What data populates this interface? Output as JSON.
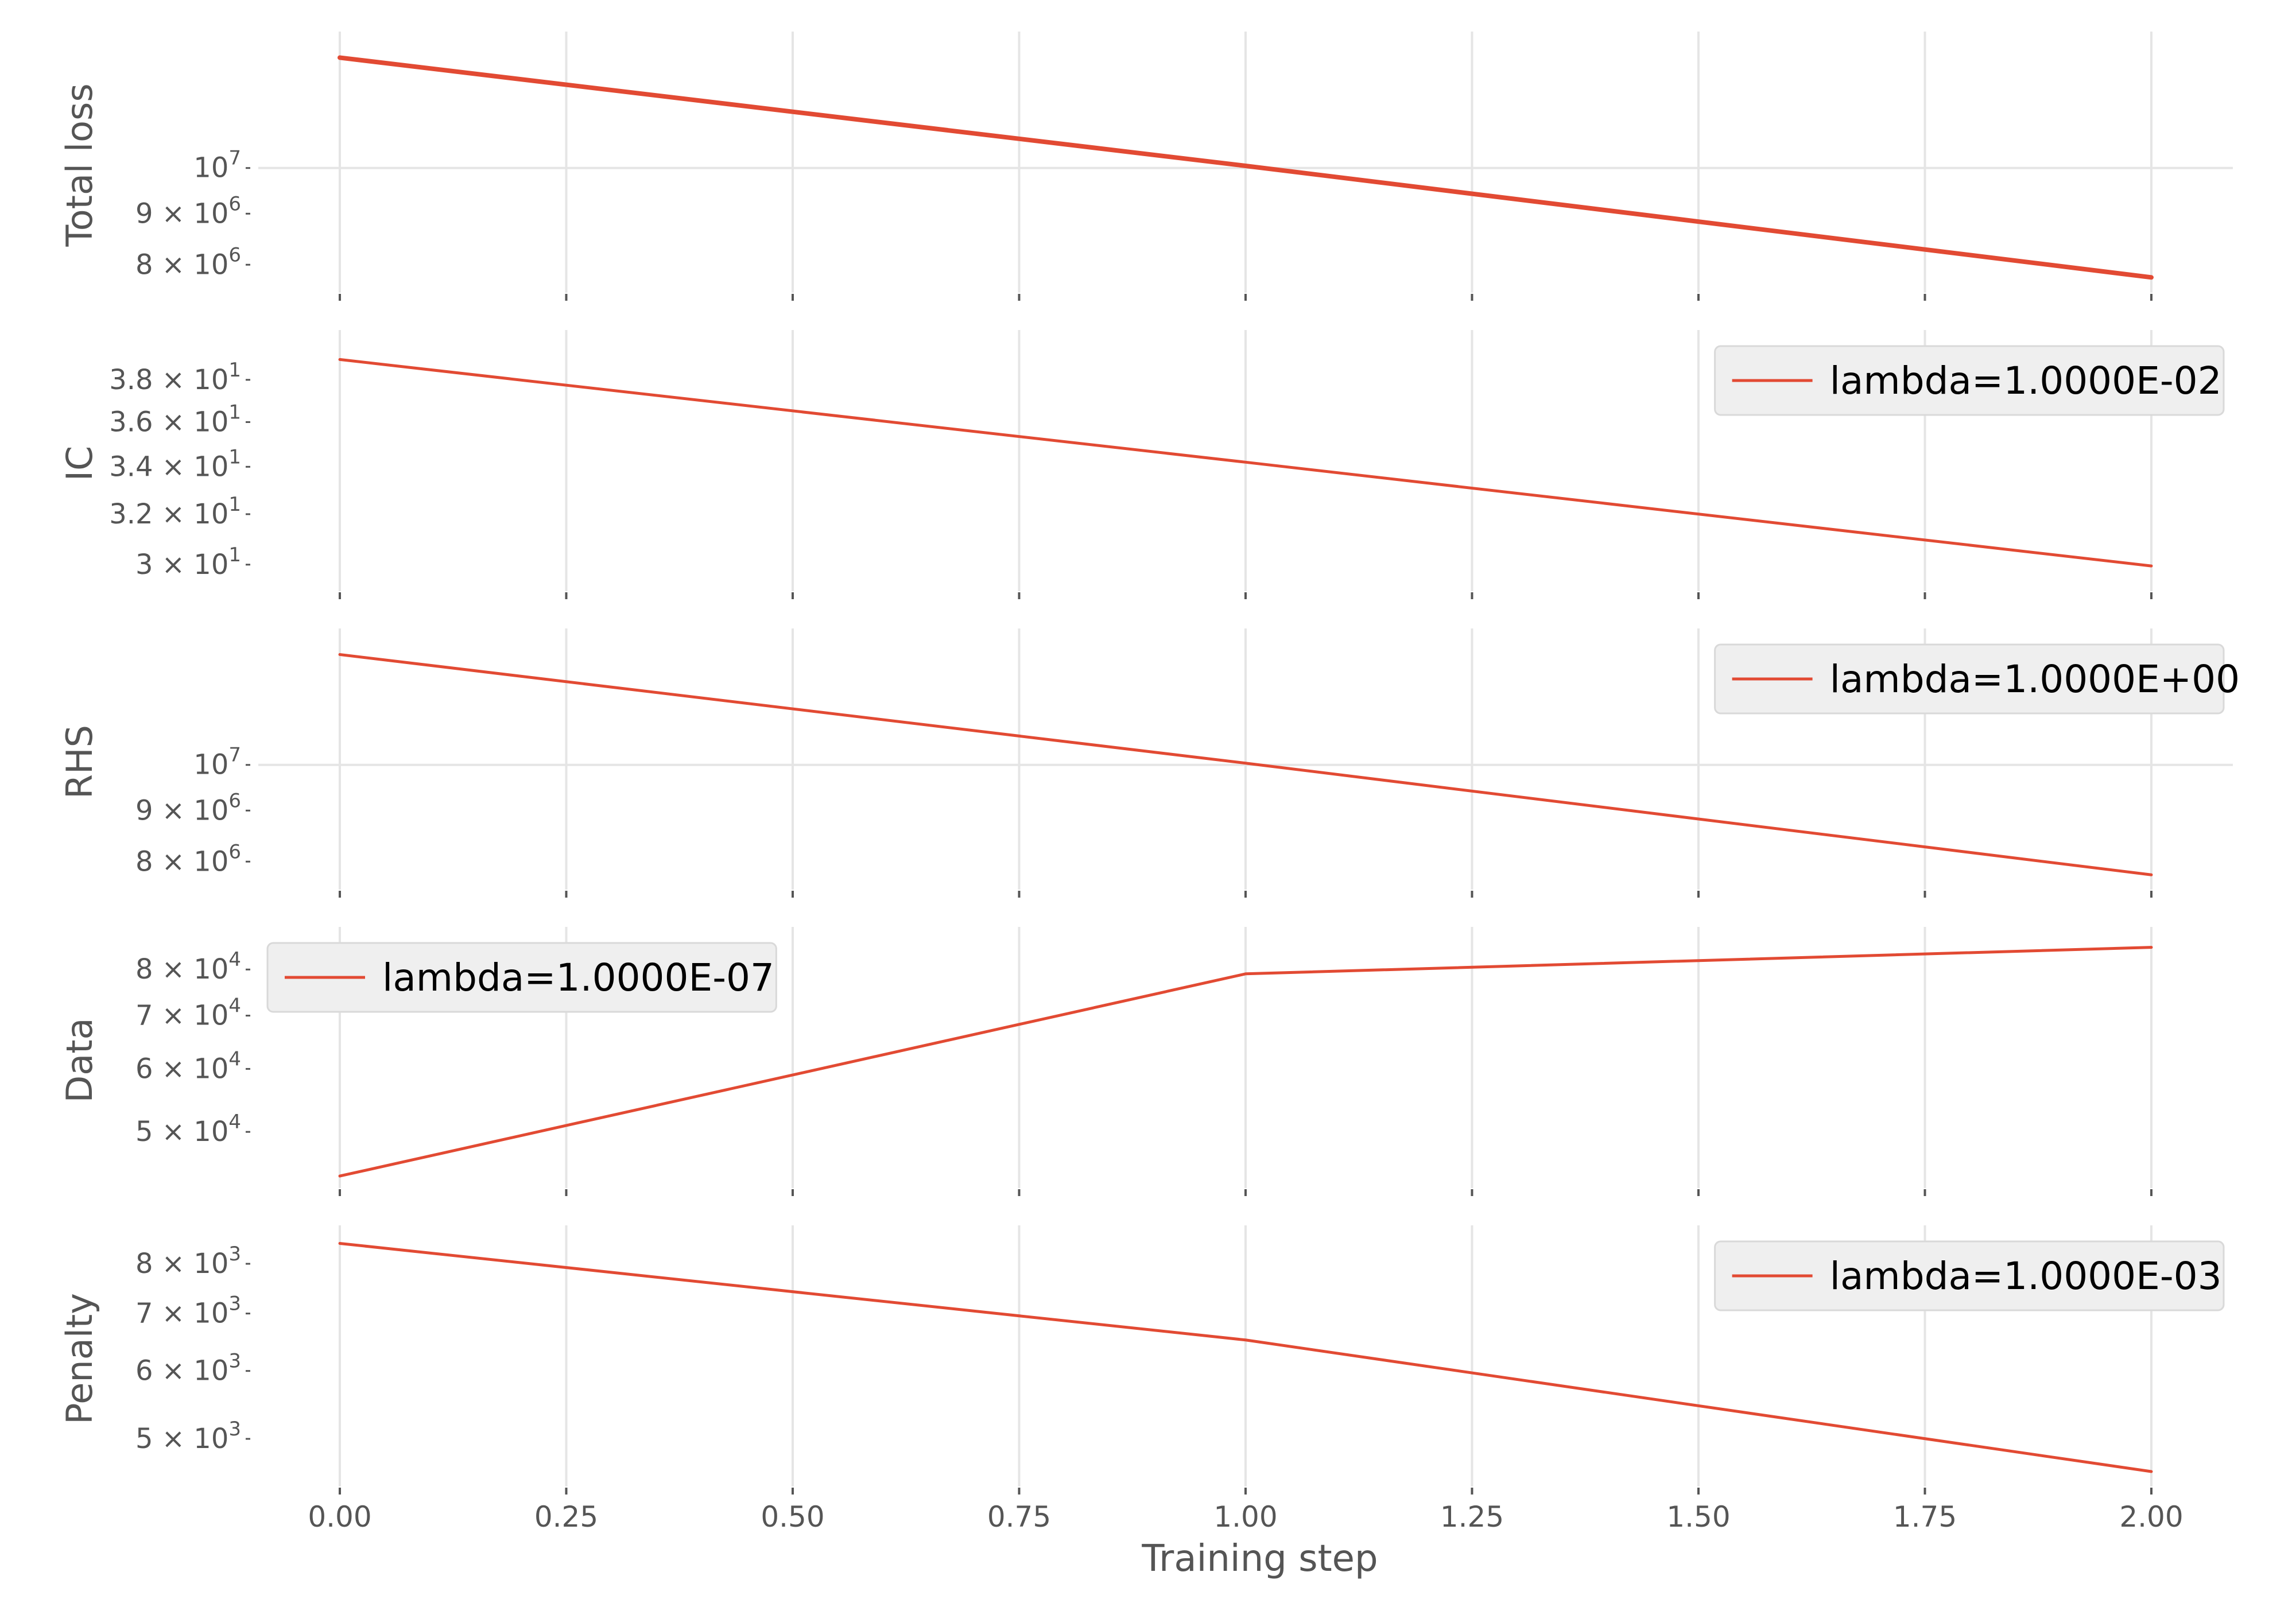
{
  "colors": {
    "line": "#E24A33",
    "grid": "#E5E5E5",
    "tick": "#555555",
    "label": "#555555",
    "legend_bg": "#EFEFEF",
    "legend_border": "#D9D9D9"
  },
  "x_tick_labels": [
    "0.00",
    "0.25",
    "0.50",
    "0.75",
    "1.00",
    "1.25",
    "1.50",
    "1.75",
    "2.00"
  ],
  "chart_data": {
    "type": "line",
    "xlabel": "Training step",
    "shared_x": true,
    "xlim": [
      -0.09,
      2.09
    ],
    "grid": true,
    "subplots": [
      {
        "ylabel": "Total loss",
        "yscale": "log",
        "ylim": [
          7500000.0,
          13700000.0
        ],
        "yticks": [
          {
            "value": 8000000,
            "base": "8 × 10",
            "exp": "6"
          },
          {
            "value": 9000000,
            "base": "9 × 10",
            "exp": "6"
          },
          {
            "value": 10000000,
            "base": "10",
            "exp": "7"
          }
        ],
        "legend": null,
        "series": [
          {
            "x": [
              0,
              1,
              2
            ],
            "y": [
              12900000,
              10050000,
              7770000
            ]
          }
        ]
      },
      {
        "ylabel": "IC",
        "yscale": "log",
        "ylim": [
          29.0,
          40.5
        ],
        "yticks": [
          {
            "value": 30,
            "base": "3 × 10",
            "exp": "1"
          },
          {
            "value": 32,
            "base": "3.2 × 10",
            "exp": "1"
          },
          {
            "value": 34,
            "base": "3.4 × 10",
            "exp": "1"
          },
          {
            "value": 36,
            "base": "3.6 × 10",
            "exp": "1"
          },
          {
            "value": 38,
            "base": "3.8 × 10",
            "exp": "1"
          }
        ],
        "legend": {
          "label": "lambda=1.0000E-02",
          "loc": "upper right"
        },
        "series": [
          {
            "x": [
              0,
              1,
              2
            ],
            "y": [
              39.0,
              34.2,
              29.95
            ]
          }
        ]
      },
      {
        "ylabel": "RHS",
        "yscale": "log",
        "ylim": [
          7500000.0,
          13700000.0
        ],
        "yticks": [
          {
            "value": 8000000,
            "base": "8 × 10",
            "exp": "6"
          },
          {
            "value": 9000000,
            "base": "9 × 10",
            "exp": "6"
          },
          {
            "value": 10000000,
            "base": "10",
            "exp": "7"
          }
        ],
        "legend": {
          "label": "lambda=1.0000E+00",
          "loc": "upper right"
        },
        "series": [
          {
            "x": [
              0,
              1,
              2
            ],
            "y": [
              12900000,
              10040000,
              7760000
            ]
          }
        ]
      },
      {
        "ylabel": "Data",
        "yscale": "log",
        "ylim": [
          42500.0,
          90500.0
        ],
        "yticks": [
          {
            "value": 50000,
            "base": "5 × 10",
            "exp": "4"
          },
          {
            "value": 60000,
            "base": "6 × 10",
            "exp": "4"
          },
          {
            "value": 70000,
            "base": "7 × 10",
            "exp": "4"
          },
          {
            "value": 80000,
            "base": "8 × 10",
            "exp": "4"
          }
        ],
        "legend": {
          "label": "lambda=1.0000E-07",
          "loc": "upper left"
        },
        "series": [
          {
            "x": [
              0,
              1,
              2
            ],
            "y": [
              44000,
              79000,
              85300
            ]
          }
        ]
      },
      {
        "ylabel": "Penalty",
        "yscale": "log",
        "ylim": [
          4400.0,
          8870.0
        ],
        "yticks": [
          {
            "value": 5000,
            "base": "5 × 10",
            "exp": "3"
          },
          {
            "value": 6000,
            "base": "6 × 10",
            "exp": "3"
          },
          {
            "value": 7000,
            "base": "7 × 10",
            "exp": "3"
          },
          {
            "value": 8000,
            "base": "8 × 10",
            "exp": "3"
          }
        ],
        "legend": {
          "label": "lambda=1.0000E-03",
          "loc": "upper right"
        },
        "series": [
          {
            "x": [
              0,
              1,
              2
            ],
            "y": [
              8450,
              6520,
              4580
            ]
          }
        ]
      }
    ]
  }
}
